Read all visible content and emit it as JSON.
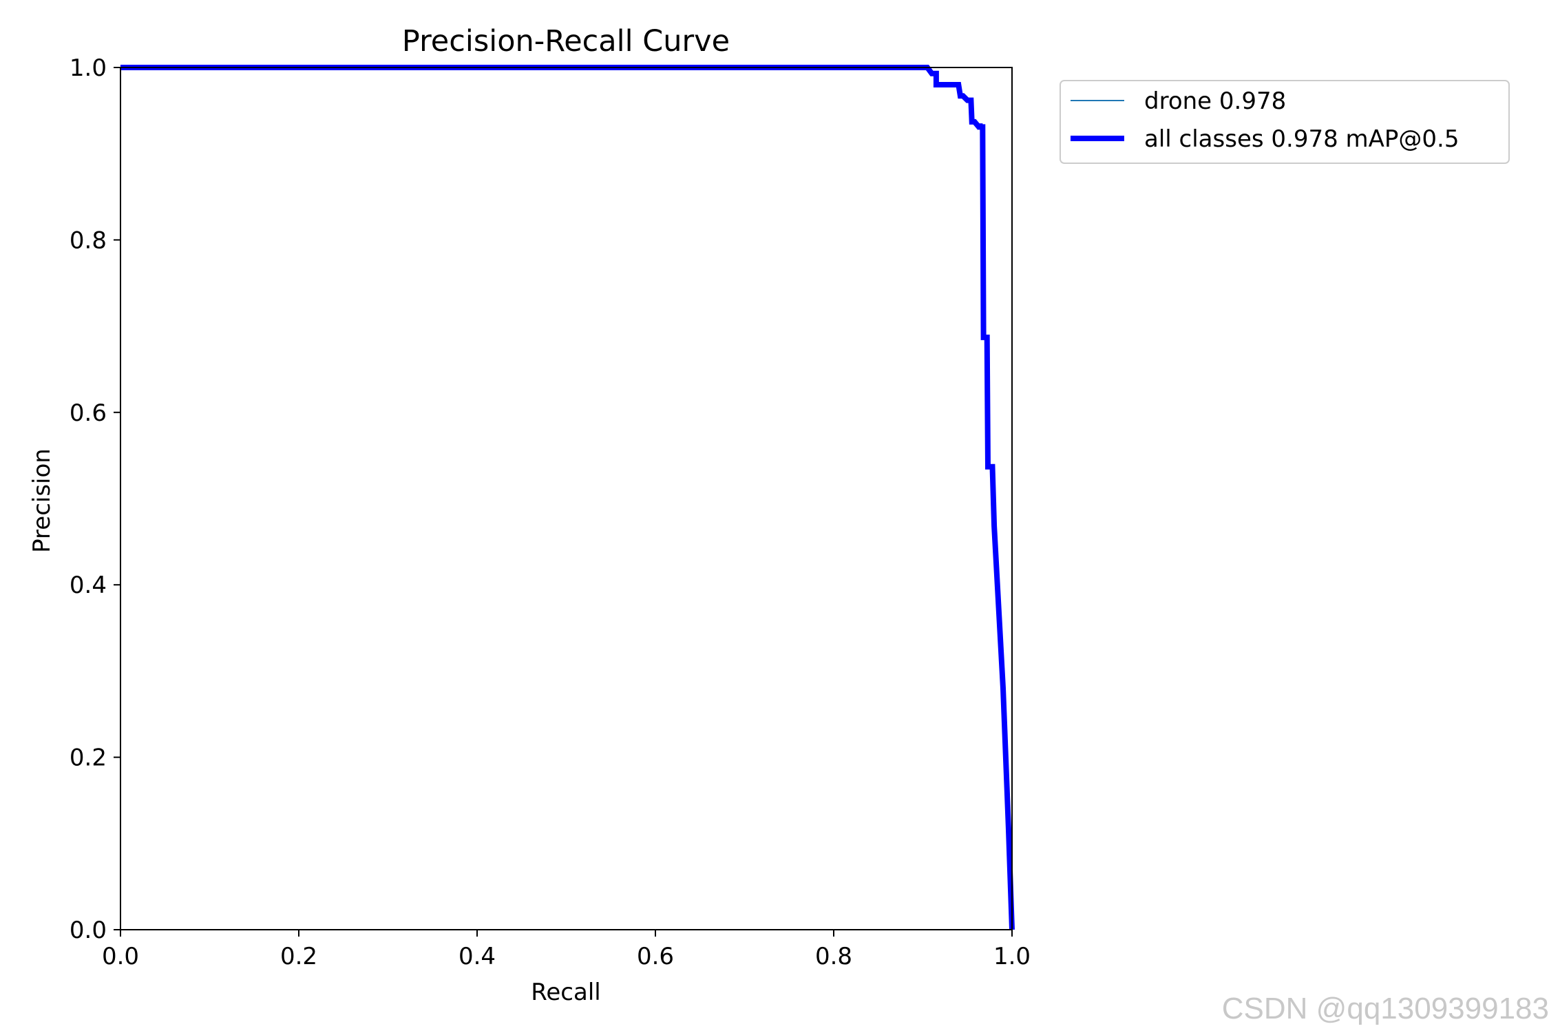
{
  "chart_data": {
    "type": "line",
    "title": "Precision-Recall Curve",
    "xlabel": "Recall",
    "ylabel": "Precision",
    "xlim": [
      0,
      1
    ],
    "ylim": [
      0,
      1
    ],
    "xticks": [
      "0.0",
      "0.2",
      "0.4",
      "0.6",
      "0.8",
      "1.0"
    ],
    "yticks": [
      "0.0",
      "0.2",
      "0.4",
      "0.6",
      "0.8",
      "1.0"
    ],
    "grid": false,
    "legend_position": "outside-top-right",
    "series": [
      {
        "name": "drone 0.978",
        "color": "#1f77b4",
        "style": "thin",
        "x": [
          0,
          0.905,
          0.91,
          0.915,
          0.915,
          0.94,
          0.942,
          0.945,
          0.95,
          0.954,
          0.955,
          0.958,
          0.962,
          0.964,
          0.964,
          0.967,
          0.968,
          0.968,
          0.972,
          0.973,
          0.973,
          0.978,
          0.98,
          0.98,
          0.99,
          0.996,
          1.0
        ],
        "y": [
          1.0,
          1.0,
          0.993,
          0.993,
          0.98,
          0.98,
          0.967,
          0.967,
          0.962,
          0.962,
          0.937,
          0.937,
          0.932,
          0.932,
          0.931,
          0.931,
          0.687,
          0.687,
          0.687,
          0.537,
          0.537,
          0.537,
          0.468,
          0.468,
          0.28,
          0.12,
          0.0
        ]
      },
      {
        "name": "all classes 0.978 mAP@0.5",
        "color": "#0000ff",
        "style": "thick",
        "x": [
          0,
          0.905,
          0.91,
          0.915,
          0.915,
          0.94,
          0.942,
          0.945,
          0.95,
          0.954,
          0.955,
          0.958,
          0.962,
          0.964,
          0.964,
          0.967,
          0.968,
          0.968,
          0.972,
          0.973,
          0.973,
          0.978,
          0.98,
          0.98,
          0.99,
          0.996,
          1.0
        ],
        "y": [
          1.0,
          1.0,
          0.993,
          0.993,
          0.98,
          0.98,
          0.967,
          0.967,
          0.962,
          0.962,
          0.937,
          0.937,
          0.932,
          0.932,
          0.931,
          0.931,
          0.687,
          0.687,
          0.687,
          0.537,
          0.537,
          0.537,
          0.468,
          0.468,
          0.28,
          0.12,
          0.0
        ]
      }
    ]
  },
  "watermark": "CSDN @qq1309399183"
}
